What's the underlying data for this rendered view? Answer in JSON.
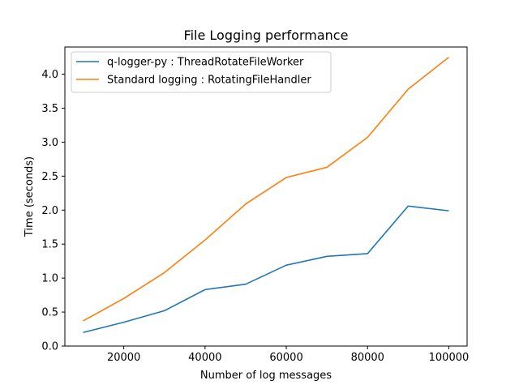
{
  "chart_data": {
    "type": "line",
    "title": "File Logging performance",
    "xlabel": "Number of log messages",
    "ylabel": "Time (seconds)",
    "x": [
      10000,
      20000,
      30000,
      40000,
      50000,
      60000,
      70000,
      80000,
      90000,
      100000
    ],
    "xlim": [
      5500,
      104500
    ],
    "ylim": [
      0,
      4.4
    ],
    "xticks": [
      20000,
      40000,
      60000,
      80000,
      100000
    ],
    "xtick_labels": [
      "20000",
      "40000",
      "60000",
      "80000",
      "100000"
    ],
    "yticks": [
      0,
      0.5,
      1.0,
      1.5,
      2.0,
      2.5,
      3.0,
      3.5,
      4.0
    ],
    "ytick_labels": [
      "0.0",
      "0.5",
      "1.0",
      "1.5",
      "2.0",
      "2.5",
      "3.0",
      "3.5",
      "4.0"
    ],
    "grid": false,
    "legend_position": "top-left",
    "series": [
      {
        "name": "q-logger-py : ThreadRotateFileWorker",
        "color": "#1f77b4",
        "values": [
          0.2,
          0.35,
          0.52,
          0.83,
          0.91,
          1.19,
          1.32,
          1.36,
          2.06,
          1.99
        ]
      },
      {
        "name": "Standard logging : RotatingFileHandler",
        "color": "#ff7f0e",
        "values": [
          0.37,
          0.7,
          1.08,
          1.56,
          2.09,
          2.48,
          2.63,
          3.07,
          3.78,
          4.25
        ]
      }
    ]
  }
}
